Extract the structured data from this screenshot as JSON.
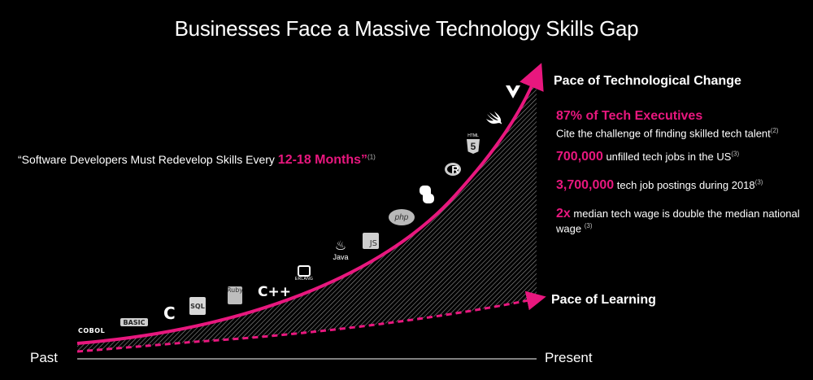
{
  "title": "Businesses Face a Massive Technology Skills Gap",
  "quote": {
    "prefix": "“Software Developers Must Redevelop Skills Every ",
    "highlight": "12-18 Months",
    "suffix": "”",
    "footnote": "(1)"
  },
  "curves": {
    "upper_label": "Pace of Technological Change",
    "lower_label": "Pace of Learning"
  },
  "stats": [
    {
      "headline": "87% of Tech Executives",
      "text": "Cite the challenge of finding skilled tech talent",
      "footnote": "(2)"
    },
    {
      "highlight": "700,000",
      "text": " unfilled tech jobs in the US",
      "footnote": "(3)"
    },
    {
      "highlight": "3,700,000",
      "text": " tech job postings during 2018",
      "footnote": "(3)"
    },
    {
      "highlight": "2x",
      "text": " median tech wage is double the median national wage ",
      "footnote": "(3)"
    }
  ],
  "axis": {
    "left": "Past",
    "right": "Present"
  },
  "technologies": {
    "cobol": "COBOL",
    "basic": "BASIC",
    "c": "C",
    "sql": "SQL",
    "ruby": "Ruby",
    "cpp": "C++",
    "erlang": "ERLANG",
    "java": "Java",
    "js": "JS",
    "php": "php",
    "python": "python-icon",
    "r": "R",
    "html": "HTML",
    "html5": "5",
    "swift": "swift-icon",
    "vue": "vue-icon"
  },
  "colors": {
    "accent": "#e8177e",
    "background": "#000000",
    "text": "#ffffff"
  }
}
